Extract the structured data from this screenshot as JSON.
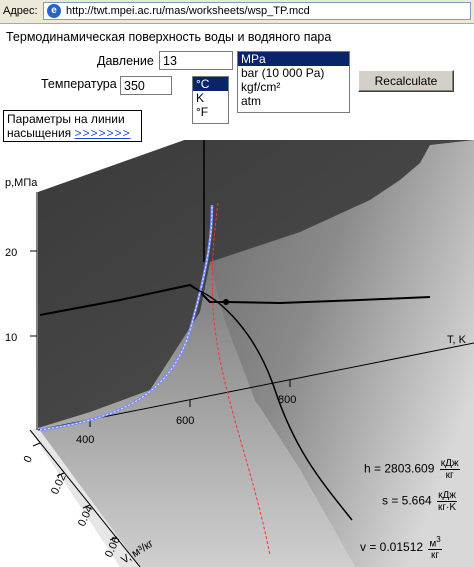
{
  "browser": {
    "address_label": "Адрес:",
    "url": "http://twt.mpei.ac.ru/mas/worksheets/wsp_TP.mcd"
  },
  "worksheet": {
    "title": "Термодинамическая поверхность воды и водяного пара",
    "pressure": {
      "label": "Давление",
      "value": "13"
    },
    "temperature": {
      "label": "Температура",
      "value": "350"
    },
    "pressure_units": [
      "MPa",
      "bar (10 000 Pa)",
      "kgf/cm²",
      "atm"
    ],
    "pressure_unit_selected": "MPa",
    "temperature_units": [
      "°C",
      "K",
      "°F"
    ],
    "temperature_unit_selected": "°C",
    "recalculate_label": "Recalculate",
    "saturation_text": "Параметры на линии",
    "saturation_text2": "насыщения",
    "saturation_link": ">>>>>>>"
  },
  "chart_data": {
    "type": "surface-3d",
    "axes": {
      "p": {
        "label": "p,МПа",
        "ticks": [
          "10",
          "20"
        ]
      },
      "T": {
        "label": "T, K",
        "ticks": [
          "400",
          "600",
          "800"
        ]
      },
      "v": {
        "label": "V, м³/кг",
        "ticks": [
          "0",
          "0.02",
          "0.04",
          "0.06"
        ]
      }
    },
    "state_point": {
      "p": 13,
      "T": 350
    }
  },
  "results": {
    "h": {
      "label": "h = 2803.609",
      "num": "кДж",
      "den": "кг"
    },
    "s": {
      "label": "s = 5.664",
      "num": "кДж",
      "den": "кг·K"
    },
    "v": {
      "label": "v = 0.01512",
      "num": "м",
      "sup": "3",
      "den": "кг"
    }
  },
  "colors": {
    "selection": "#0a246a",
    "saturation_liquid_line": "#7a8cff",
    "isotherm_line": "#ff3030",
    "link": "#1a4fd6"
  }
}
